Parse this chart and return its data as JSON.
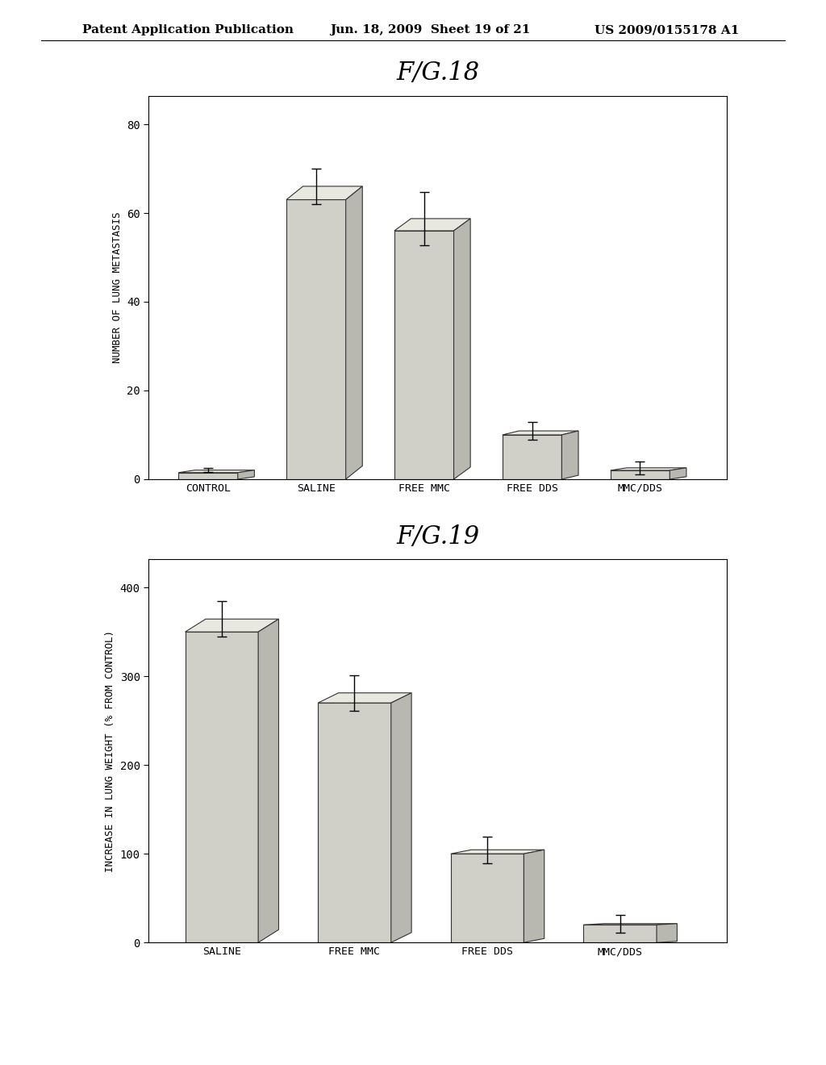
{
  "header_left": "Patent Application Publication",
  "header_mid": "Jun. 18, 2009  Sheet 19 of 21",
  "header_right": "US 2009/0155178 A1",
  "fig18": {
    "title": "F/G.18",
    "categories": [
      "CONTROL",
      "SALINE",
      "FREE MMC",
      "FREE DDS",
      "MMC/DDS"
    ],
    "values": [
      1.5,
      63,
      56,
      10,
      2
    ],
    "errors": [
      0.5,
      4,
      6,
      2,
      1.5
    ],
    "ylabel": "NUMBER OF LUNG METASTASIS",
    "ylim": [
      0,
      80
    ],
    "yticks": [
      0,
      20,
      40,
      60,
      80
    ]
  },
  "fig19": {
    "title": "F/G.19",
    "categories": [
      "SALINE",
      "FREE MMC",
      "FREE DDS",
      "MMC/DDS"
    ],
    "values": [
      350,
      270,
      100,
      20
    ],
    "errors": [
      20,
      20,
      15,
      10
    ],
    "ylabel": "INCREASE IN LUNG WEIGHT (% FROM CONTROL)",
    "ylim": [
      0,
      400
    ],
    "yticks": [
      0,
      100,
      200,
      300,
      400
    ]
  },
  "bar_color": "#d0d0c8",
  "bar_top_color": "#e8e8e0",
  "bar_side_color": "#b8b8b0",
  "bar_edge_color": "#333333",
  "background_color": "#ffffff",
  "text_color": "#000000",
  "header_fontsize": 11,
  "title_fontsize": 22,
  "tick_fontsize": 10,
  "label_fontsize": 9,
  "bar_width": 0.55
}
